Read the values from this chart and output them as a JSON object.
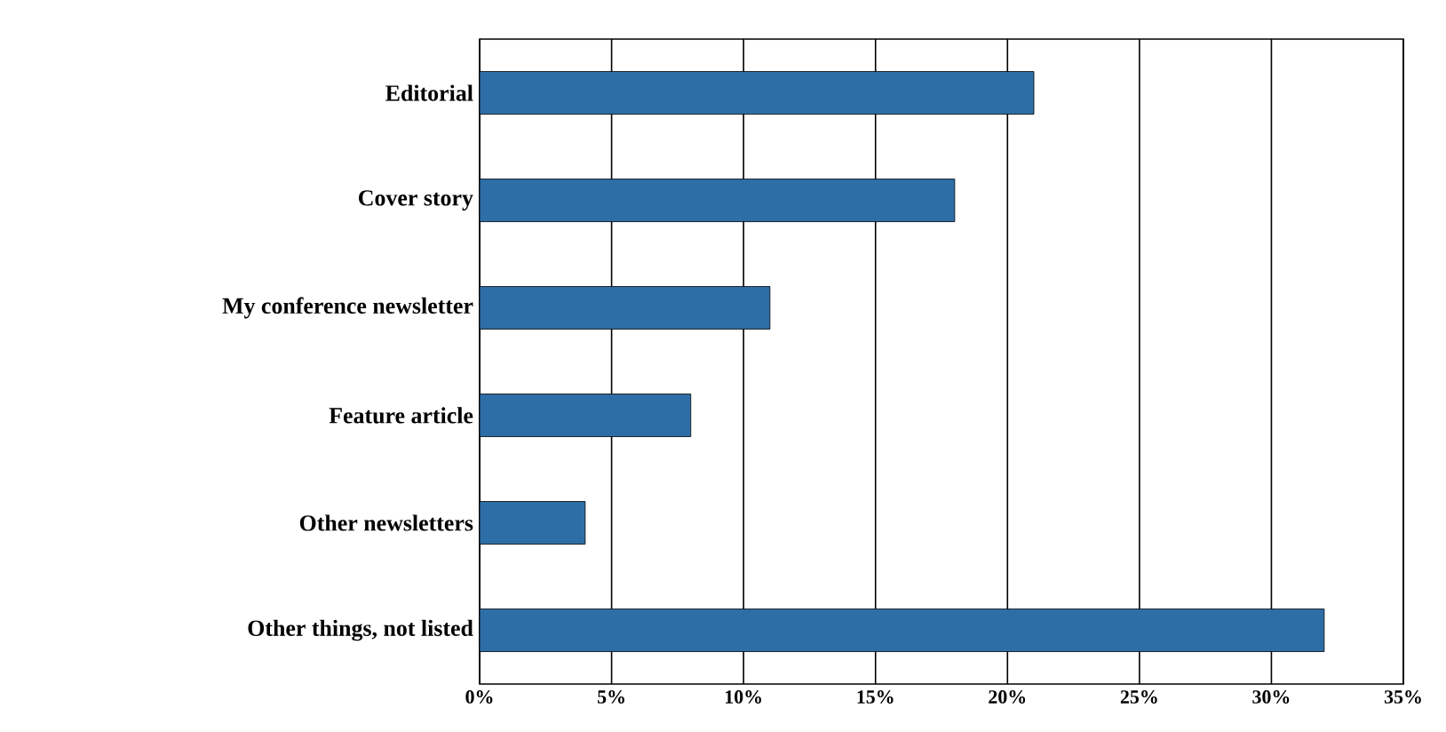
{
  "chart_data": {
    "type": "bar",
    "orientation": "horizontal",
    "categories": [
      "Editorial",
      "Cover story",
      "My conference newsletter",
      "Feature article",
      "Other newsletters",
      "Other things, not listed"
    ],
    "values": [
      21,
      18,
      11,
      8,
      4,
      32
    ],
    "color": "#2e6ea6",
    "xlim": [
      0,
      35
    ],
    "xticks": [
      {
        "value": 0,
        "label": "0%"
      },
      {
        "value": 5,
        "label": "5%"
      },
      {
        "value": 10,
        "label": "10%"
      },
      {
        "value": 15,
        "label": "15%"
      },
      {
        "value": 20,
        "label": "20%"
      },
      {
        "value": 25,
        "label": "25%"
      },
      {
        "value": 30,
        "label": "30%"
      },
      {
        "value": 35,
        "label": "35%"
      }
    ],
    "grid": "x"
  }
}
